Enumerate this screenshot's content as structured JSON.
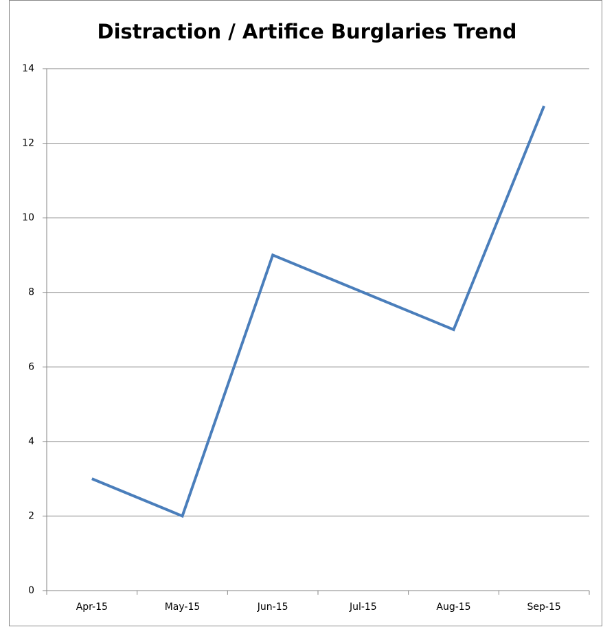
{
  "chart_data": {
    "type": "line",
    "title": "Distraction / Artifice Burglaries Trend",
    "categories": [
      "Apr-15",
      "May-15",
      "Jun-15",
      "Jul-15",
      "Aug-15",
      "Sep-15"
    ],
    "series": [
      {
        "name": "Distraction / Artifice Burglaries",
        "color": "#4a7ebb",
        "values": [
          3,
          2,
          9,
          8,
          7,
          13
        ]
      }
    ],
    "ylim": [
      0,
      14
    ],
    "yticks": [
      0,
      2,
      4,
      6,
      8,
      10,
      12,
      14
    ],
    "grid": true
  }
}
